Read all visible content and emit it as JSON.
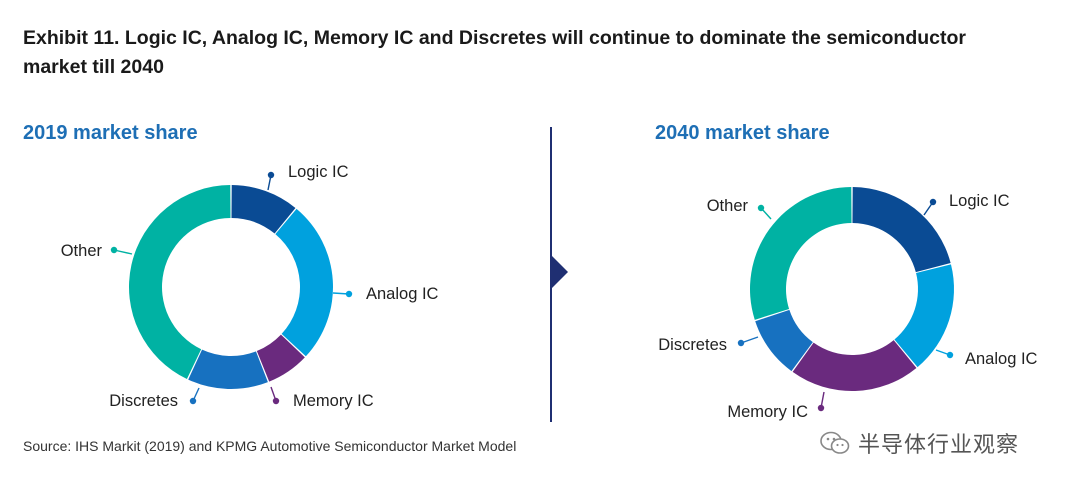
{
  "title": "Exhibit 11. Logic IC, Analog IC, Memory IC and Discretes will continue to dominate the semiconductor market till 2040",
  "source": "Source: IHS Markit (2019) and KPMG Automotive Semiconductor Market Model",
  "watermark": "半导体行业观察",
  "colors": {
    "Logic IC": "#0a4b94",
    "Analog IC": "#00a1de",
    "Memory IC": "#6a2a7e",
    "Discretes": "#1771c0",
    "Other": "#00b2a3",
    "subtitle": "#1e6fb5",
    "divider": "#1f2f72"
  },
  "chart_data": [
    {
      "type": "pie",
      "donut": true,
      "title": "2019 market share",
      "labels": [
        "Logic IC",
        "Analog IC",
        "Memory IC",
        "Discretes",
        "Other"
      ],
      "values": [
        11,
        26,
        7,
        13,
        43
      ],
      "legend": "none"
    },
    {
      "type": "pie",
      "donut": true,
      "title": "2040 market share",
      "labels": [
        "Logic IC",
        "Analog IC",
        "Memory IC",
        "Discretes",
        "Other"
      ],
      "values": [
        21,
        18,
        21,
        10,
        30
      ],
      "legend": "none"
    }
  ]
}
